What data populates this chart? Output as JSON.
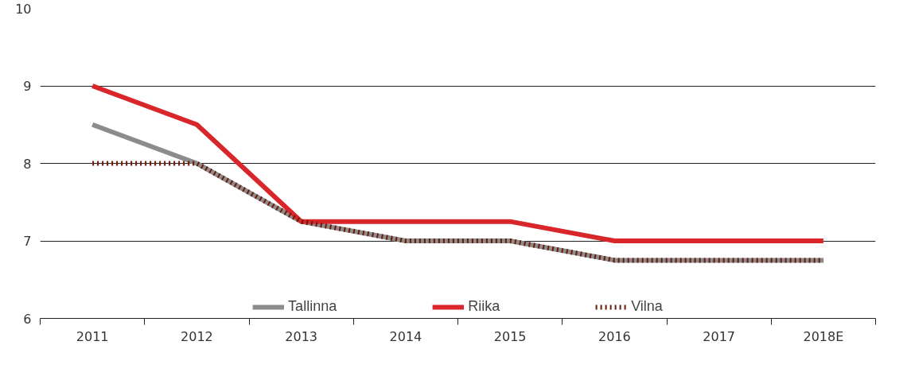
{
  "chart_data": {
    "type": "line",
    "categories": [
      "2011",
      "2012",
      "2013",
      "2014",
      "2015",
      "2016",
      "2017",
      "2018E"
    ],
    "series": [
      {
        "name": "Tallinna",
        "color": "#8c8c8c",
        "line_style": "solid",
        "values": [
          8.5,
          8.0,
          7.25,
          7.0,
          7.0,
          6.75,
          6.75,
          6.75
        ]
      },
      {
        "name": "Riika",
        "color": "#d9262b",
        "line_style": "solid",
        "values": [
          9.0,
          8.5,
          7.25,
          7.25,
          7.25,
          7.0,
          7.0,
          7.0
        ]
      },
      {
        "name": "Vilna",
        "color": "#6b1a0a",
        "line_style": "dotted",
        "values": [
          8.0,
          8.0,
          7.25,
          7.0,
          7.0,
          6.75,
          6.75,
          6.75
        ]
      }
    ],
    "ylim": [
      6,
      10
    ],
    "yticks": [
      6,
      7,
      8,
      9,
      10
    ],
    "grid": "y",
    "legend": "bottom",
    "marker": "none"
  }
}
